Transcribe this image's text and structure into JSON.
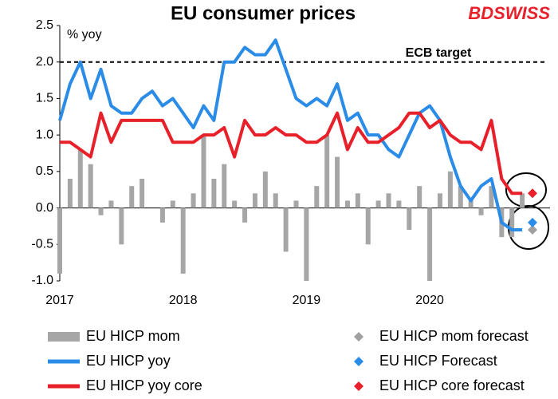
{
  "chart_data": {
    "type": "bar",
    "title": "EU consumer prices",
    "brand": "BDSWISS",
    "y_label": "% yoy",
    "target": 2,
    "target_label": "ECB target",
    "categories": [
      "2017",
      null,
      null,
      null,
      null,
      null,
      null,
      null,
      null,
      null,
      null,
      null,
      "2018",
      null,
      null,
      null,
      null,
      null,
      null,
      null,
      null,
      null,
      null,
      null,
      "2019",
      null,
      null,
      null,
      null,
      null,
      null,
      null,
      null,
      null,
      null,
      null,
      "2020",
      null,
      null,
      null,
      null,
      null,
      null,
      null,
      null,
      null,
      null
    ],
    "ylim": [
      -1,
      2.5
    ],
    "yticks": [
      {
        "value": -1,
        "label": "-1.0"
      },
      -0.5,
      {
        "value": 0,
        "label": "0.0"
      },
      0.5,
      {
        "value": 1,
        "label": "1.0"
      },
      1.5,
      {
        "value": 2,
        "label": "2.0"
      },
      2.5
    ],
    "series": [
      {
        "name": "EU HICP mom",
        "type": "bar",
        "color": "#a6a6a6",
        "values": [
          -0.9,
          0.4,
          0.8,
          0.6,
          -0.1,
          0.1,
          -0.5,
          0.3,
          0.4,
          0.0,
          -0.2,
          0.1,
          -0.9,
          0.2,
          1.0,
          0.4,
          0.6,
          0.1,
          -0.2,
          0.2,
          0.5,
          0.2,
          -0.6,
          0.1,
          -1.0,
          0.3,
          1.0,
          0.7,
          0.1,
          0.2,
          -0.5,
          0.1,
          0.2,
          0.1,
          -0.3,
          0.3,
          -1.0,
          0.2,
          0.5,
          0.3,
          0.1,
          -0.1,
          0.3,
          -0.4,
          -0.4,
          0.2,
          null
        ]
      },
      {
        "name": "EU HICP yoy",
        "type": "line",
        "color": "#2b8ce8",
        "values": [
          1.2,
          1.7,
          2.0,
          1.5,
          1.9,
          1.4,
          1.3,
          1.3,
          1.5,
          1.6,
          1.4,
          1.5,
          1.3,
          1.1,
          1.4,
          1.2,
          2.0,
          2.0,
          2.2,
          2.1,
          2.1,
          2.3,
          1.9,
          1.5,
          1.4,
          1.5,
          1.4,
          1.7,
          1.2,
          1.3,
          1.0,
          1.0,
          0.8,
          0.7,
          1.0,
          1.3,
          1.4,
          1.2,
          0.7,
          0.3,
          0.1,
          0.3,
          0.4,
          -0.2,
          -0.3,
          -0.3,
          null
        ]
      },
      {
        "name": "EU HICP yoy core",
        "type": "line",
        "color": "#e8202a",
        "values": [
          0.9,
          0.9,
          0.8,
          0.7,
          1.3,
          0.9,
          1.2,
          1.2,
          1.2,
          1.2,
          1.2,
          0.9,
          0.9,
          0.9,
          1.0,
          1.0,
          1.1,
          0.7,
          1.2,
          1.0,
          1.0,
          1.1,
          1.0,
          1.0,
          0.9,
          0.9,
          1.0,
          1.3,
          0.8,
          1.1,
          0.9,
          0.9,
          1.0,
          1.1,
          1.3,
          1.3,
          1.1,
          1.2,
          1.0,
          0.9,
          0.9,
          0.8,
          1.2,
          0.4,
          0.2,
          0.2,
          null
        ]
      },
      {
        "name": "EU HICP mom forecast",
        "type": "marker",
        "color": "#a0a0a0",
        "values": [
          null,
          null,
          null,
          null,
          null,
          null,
          null,
          null,
          null,
          null,
          null,
          null,
          null,
          null,
          null,
          null,
          null,
          null,
          null,
          null,
          null,
          null,
          null,
          null,
          null,
          null,
          null,
          null,
          null,
          null,
          null,
          null,
          null,
          null,
          null,
          null,
          null,
          null,
          null,
          null,
          null,
          null,
          null,
          null,
          null,
          null,
          -0.3
        ]
      },
      {
        "name": "EU HICP Forecast",
        "type": "marker",
        "color": "#2b8ce8",
        "values": [
          null,
          null,
          null,
          null,
          null,
          null,
          null,
          null,
          null,
          null,
          null,
          null,
          null,
          null,
          null,
          null,
          null,
          null,
          null,
          null,
          null,
          null,
          null,
          null,
          null,
          null,
          null,
          null,
          null,
          null,
          null,
          null,
          null,
          null,
          null,
          null,
          null,
          null,
          null,
          null,
          null,
          null,
          null,
          null,
          null,
          null,
          -0.2
        ]
      },
      {
        "name": "EU HICP core forecast",
        "type": "marker",
        "color": "#e8202a",
        "values": [
          null,
          null,
          null,
          null,
          null,
          null,
          null,
          null,
          null,
          null,
          null,
          null,
          null,
          null,
          null,
          null,
          null,
          null,
          null,
          null,
          null,
          null,
          null,
          null,
          null,
          null,
          null,
          null,
          null,
          null,
          null,
          null,
          null,
          null,
          null,
          null,
          null,
          null,
          null,
          null,
          null,
          null,
          null,
          null,
          null,
          null,
          0.2
        ]
      }
    ]
  }
}
